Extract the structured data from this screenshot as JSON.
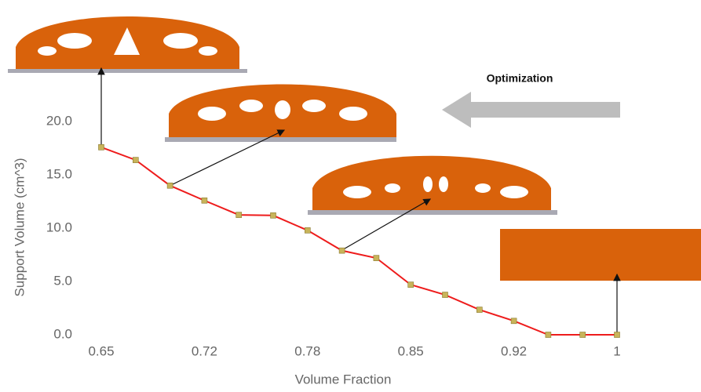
{
  "chart_data": {
    "type": "line",
    "x_label": "Volume Fraction",
    "y_label": "Support Volume (cm^3)",
    "annotation": "Optimization",
    "categories": [
      "0.65",
      null,
      null,
      "0.72",
      null,
      null,
      "0.78",
      null,
      null,
      "0.85",
      null,
      null,
      "0.92",
      null,
      null,
      "1"
    ],
    "series": [
      {
        "color": "#ee1c1c",
        "marker_color": "#c8b45a",
        "values": [
          17.6,
          16.4,
          14.0,
          12.6,
          11.25,
          11.2,
          9.8,
          7.9,
          7.2,
          4.7,
          3.75,
          2.35,
          1.3,
          0,
          0,
          0
        ]
      }
    ],
    "ylim": [
      0,
      22
    ],
    "yticks": [
      {
        "value": 0,
        "label": "0.0"
      },
      {
        "value": 5,
        "label": "5.0"
      },
      {
        "value": 10,
        "label": "10.0"
      },
      {
        "value": 15,
        "label": "15.0"
      },
      {
        "value": 20,
        "label": "20.0"
      }
    ],
    "grid": false
  }
}
